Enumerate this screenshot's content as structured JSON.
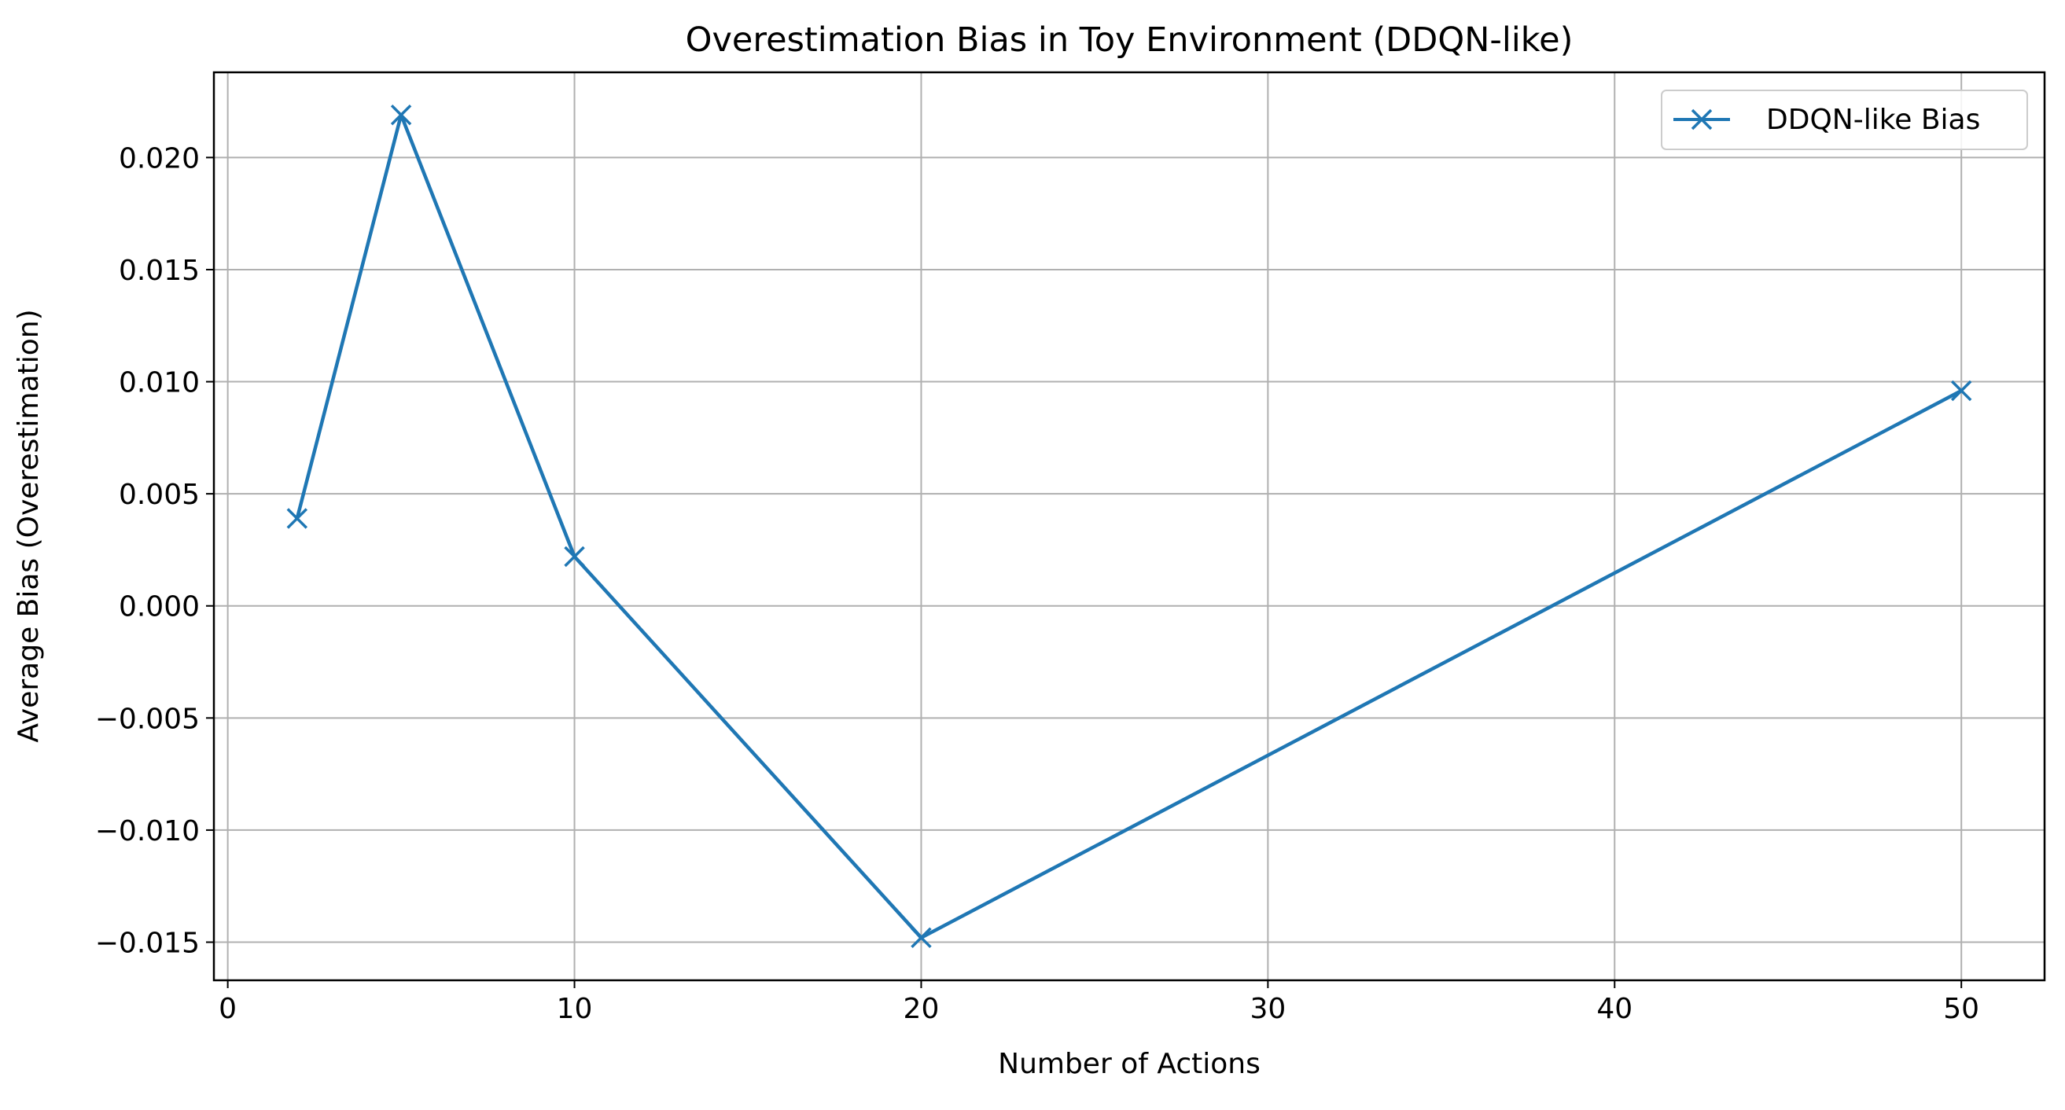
{
  "chart_data": {
    "type": "line",
    "title": "Overestimation Bias in Toy Environment (DDQN-like)",
    "xlabel": "Number of Actions",
    "ylabel": "Average Bias (Overestimation)",
    "xlim": [
      -0.4,
      52.4
    ],
    "ylim": [
      -0.0167,
      0.0238
    ],
    "xticks": [
      0,
      10,
      20,
      30,
      40,
      50
    ],
    "xtick_labels": [
      "0",
      "10",
      "20",
      "30",
      "40",
      "50"
    ],
    "yticks": [
      0.02,
      0.015,
      0.01,
      0.005,
      0.0,
      -0.005,
      -0.01,
      -0.015
    ],
    "ytick_labels": [
      "0.020",
      "0.015",
      "0.010",
      "0.005",
      "0.000",
      "−0.005",
      "−0.010",
      "−0.015"
    ],
    "grid": true,
    "legend_position": "top-right",
    "marker": "x",
    "series": [
      {
        "name": "DDQN-like Bias",
        "color": "#1f77b4",
        "x": [
          2,
          5,
          10,
          20,
          50
        ],
        "y": [
          0.0039,
          0.0219,
          0.0022,
          -0.0148,
          0.0096
        ]
      }
    ]
  }
}
